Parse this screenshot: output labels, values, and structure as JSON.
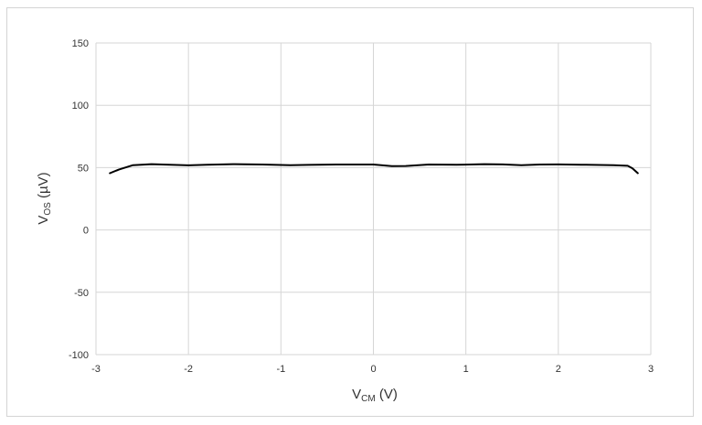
{
  "chart_data": {
    "type": "line",
    "xlabel_main": "V",
    "xlabel_sub": "CM",
    "xlabel_unit": " (V)",
    "ylabel_main": "V",
    "ylabel_sub": "OS",
    "ylabel_unit": " (µV)",
    "xlim": [
      -3,
      3
    ],
    "ylim": [
      -100,
      150
    ],
    "x_ticks": [
      -3,
      -2,
      -1,
      0,
      1,
      2,
      3
    ],
    "y_ticks": [
      150,
      100,
      50,
      0,
      -50,
      -100
    ],
    "grid": true,
    "series": [
      {
        "color": "#000000",
        "x": [
          -2.85,
          -2.75,
          -2.6,
          -2.4,
          -2.2,
          -2.0,
          -1.8,
          -1.5,
          -1.2,
          -0.9,
          -0.7,
          -0.4,
          0.0,
          0.2,
          0.35,
          0.6,
          0.9,
          1.2,
          1.4,
          1.6,
          1.8,
          2.0,
          2.3,
          2.6,
          2.75,
          2.8,
          2.86
        ],
        "y": [
          45.5,
          48.5,
          52.0,
          52.8,
          52.3,
          51.8,
          52.3,
          52.8,
          52.5,
          52.0,
          52.2,
          52.5,
          52.5,
          51.2,
          51.3,
          52.5,
          52.3,
          52.8,
          52.6,
          52.0,
          52.5,
          52.6,
          52.3,
          52.0,
          51.5,
          49.5,
          45.5
        ]
      }
    ]
  }
}
